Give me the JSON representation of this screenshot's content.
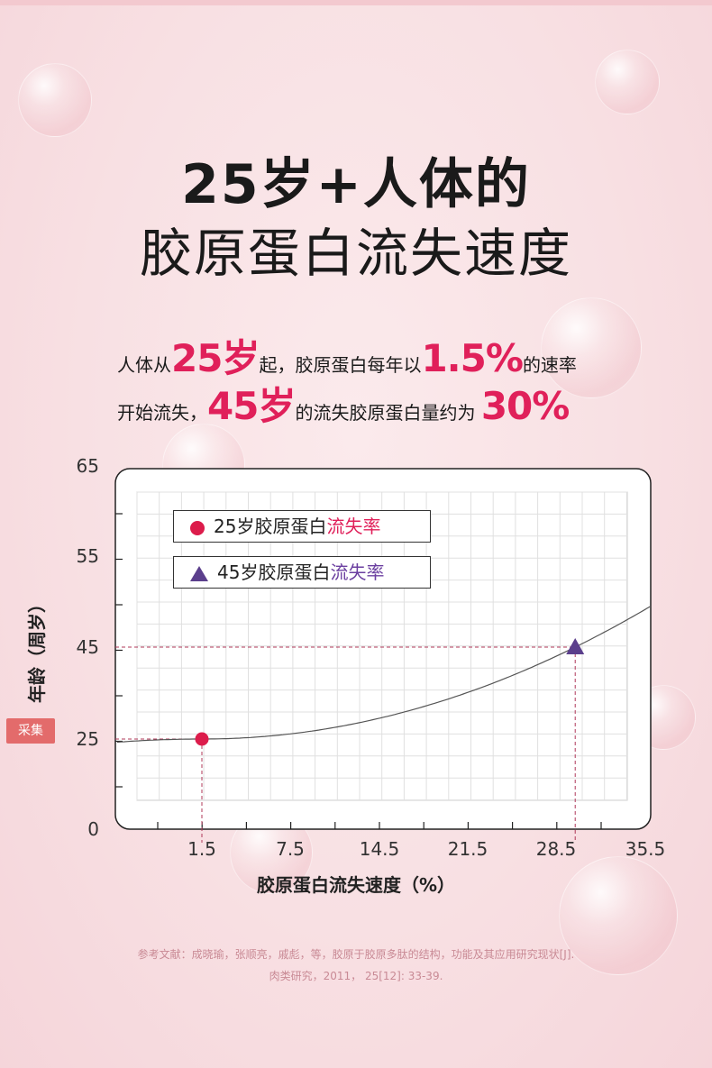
{
  "heading": {
    "line1": "25岁+人体的",
    "line2": "胶原蛋白流失速度"
  },
  "subtitle": {
    "p1": "人体从",
    "v1": "25岁",
    "p2": "起，胶原蛋白每年以",
    "v2": "1.5%",
    "p3": "的速率",
    "p4": "开始流失，",
    "v3": "45岁",
    "p5": "的流失胶原蛋白量约为 ",
    "v4": "30%"
  },
  "collect_button": "采集",
  "chart_data": {
    "type": "line",
    "xlabel": "胶原蛋白流失速度（%）",
    "ylabel": "年龄（周岁）",
    "x_ticks": [
      "1.5",
      "7.5",
      "14.5",
      "21.5",
      "28.5",
      "35.5"
    ],
    "y_ticks": [
      "0",
      "25",
      "45",
      "55",
      "65"
    ],
    "grid": true,
    "legend": [
      {
        "prefix": "25岁胶原蛋白",
        "highlight": "流失率",
        "marker": "circle",
        "color": "#dc1c4b"
      },
      {
        "prefix": "45岁胶原蛋白",
        "highlight": "流失率",
        "marker": "triangle",
        "color": "#5b3f8c"
      }
    ],
    "points": [
      {
        "x": 1.5,
        "y": 25,
        "marker": "circle",
        "color": "#dc1c4b"
      },
      {
        "x": 30,
        "y": 45,
        "marker": "triangle",
        "color": "#5b3f8c"
      }
    ],
    "curve_color": "#555555",
    "guide_color": "#b0385a"
  },
  "reference": {
    "line1": "参考文献：成晓瑜，张顺亮，戚彪，等，胶原于胶原多肽的结构，功能及其应用研究现状[J].",
    "line2": "肉类研究，2011， 25[12]: 33-39."
  }
}
